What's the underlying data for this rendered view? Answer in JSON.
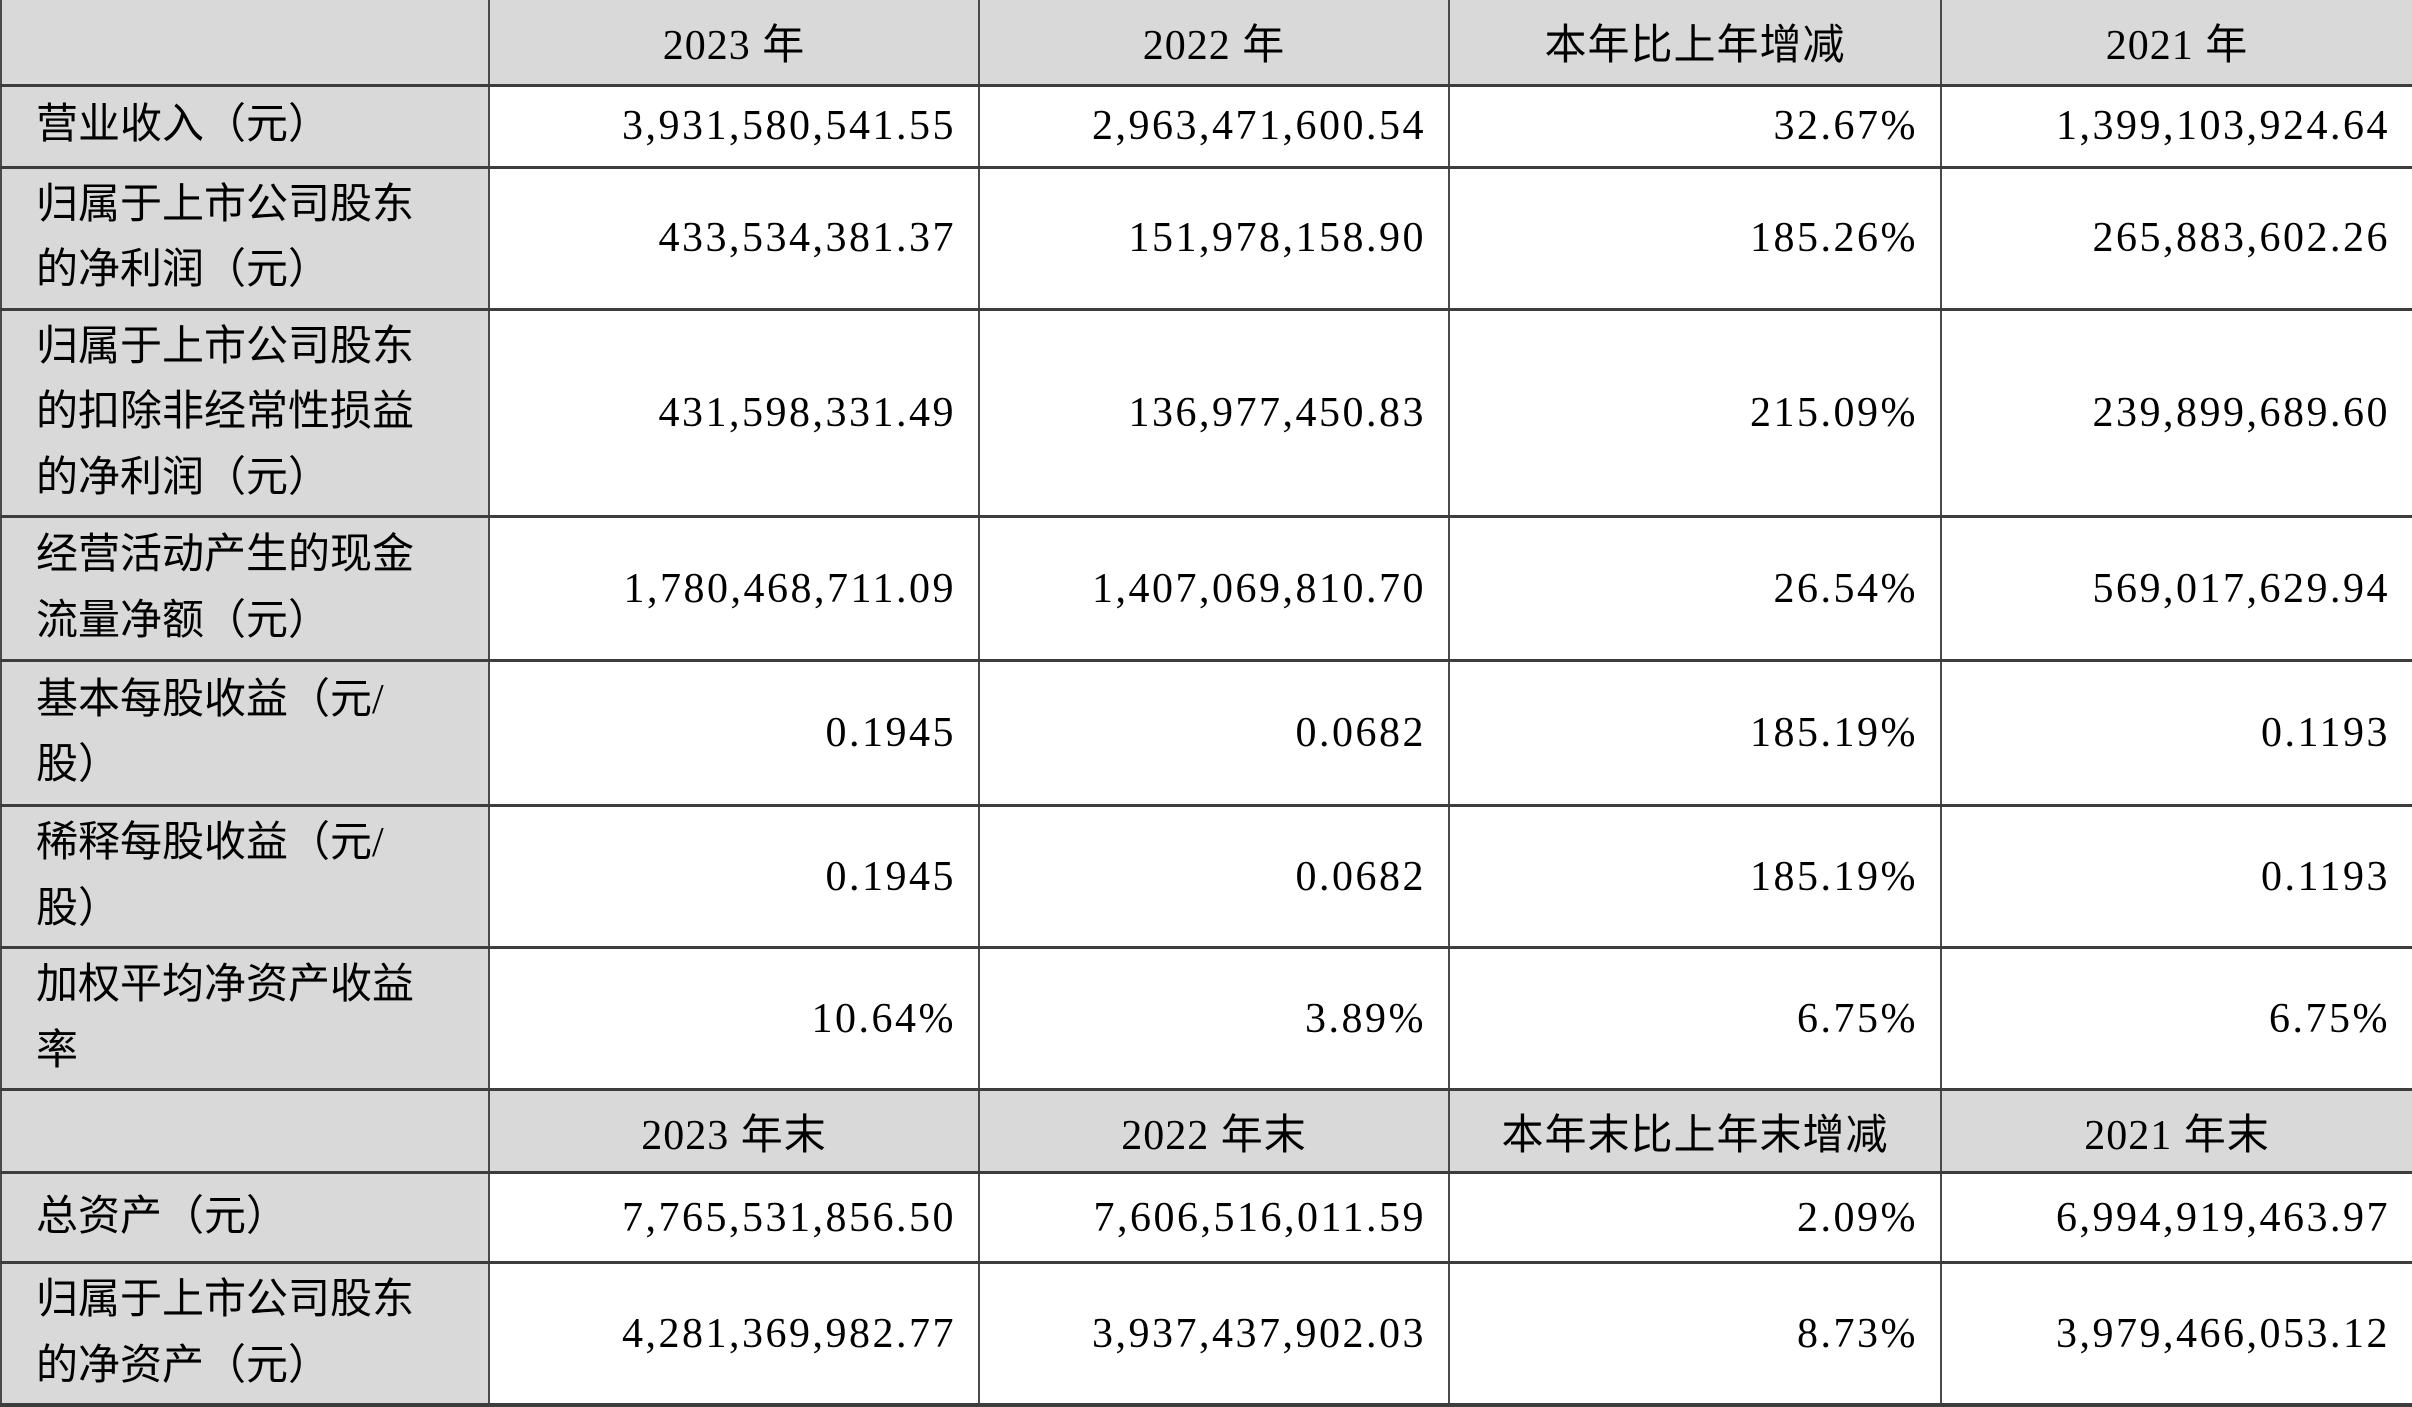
{
  "colors": {
    "header_and_label_bg": "#d9d9d9",
    "cell_bg": "#ffffff",
    "border": "#3d3d3d",
    "text": "#000000"
  },
  "table": {
    "rows": [
      {
        "label": "",
        "c1": "2023 年",
        "c2": "2022 年",
        "c3": "本年比上年增减",
        "c4": "2021 年"
      },
      {
        "label": "营业收入（元）",
        "c1": "3,931,580,541.55",
        "c2": "2,963,471,600.54",
        "c3": "32.67%",
        "c4": "1,399,103,924.64"
      },
      {
        "label": "归属于上市公司股东的净利润（元）",
        "c1": "433,534,381.37",
        "c2": "151,978,158.90",
        "c3": "185.26%",
        "c4": "265,883,602.26"
      },
      {
        "label": "归属于上市公司股东的扣除非经常性损益的净利润（元）",
        "c1": "431,598,331.49",
        "c2": "136,977,450.83",
        "c3": "215.09%",
        "c4": "239,899,689.60"
      },
      {
        "label": "经营活动产生的现金流量净额（元）",
        "c1": "1,780,468,711.09",
        "c2": "1,407,069,810.70",
        "c3": "26.54%",
        "c4": "569,017,629.94"
      },
      {
        "label": "基本每股收益（元/股）",
        "c1": "0.1945",
        "c2": "0.0682",
        "c3": "185.19%",
        "c4": "0.1193"
      },
      {
        "label": "稀释每股收益（元/股）",
        "c1": "0.1945",
        "c2": "0.0682",
        "c3": "185.19%",
        "c4": "0.1193"
      },
      {
        "label": "加权平均净资产收益率",
        "c1": "10.64%",
        "c2": "3.89%",
        "c3": "6.75%",
        "c4": "6.75%"
      },
      {
        "label": "",
        "c1": "2023 年末",
        "c2": "2022 年末",
        "c3": "本年末比上年末增减",
        "c4": "2021 年末"
      },
      {
        "label": "总资产（元）",
        "c1": "7,765,531,856.50",
        "c2": "7,606,516,011.59",
        "c3": "2.09%",
        "c4": "6,994,919,463.97"
      },
      {
        "label": "归属于上市公司股东的净资产（元）",
        "c1": "4,281,369,982.77",
        "c2": "3,937,437,902.03",
        "c3": "8.73%",
        "c4": "3,979,466,053.12"
      }
    ]
  }
}
